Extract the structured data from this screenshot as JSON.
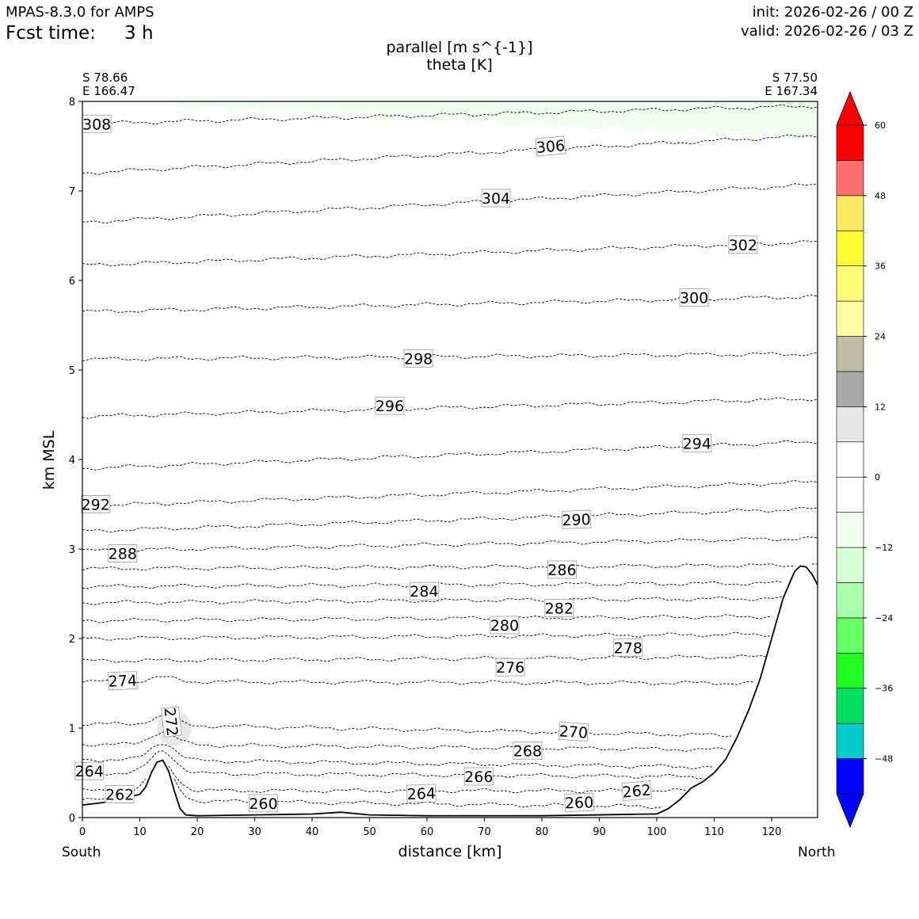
{
  "header": {
    "model": "MPAS-8.3.0 for AMPS",
    "fcst_label": "Fcst time:",
    "fcst_value": "3 h",
    "init": "init: 2026-02-26 / 00 Z",
    "valid": "valid: 2026-02-26 / 03 Z"
  },
  "endpoints": {
    "left_lat": "S 78.66",
    "left_lon": "E 166.47",
    "right_lat": "S 77.50",
    "right_lon": "E 167.34",
    "left_dir": "South",
    "right_dir": "North"
  },
  "chart_data": {
    "type": "cross-section",
    "title": "parallel [m s^{-1}]",
    "subtitle": "theta [K]",
    "xlabel": "distance [km]",
    "ylabel": "km MSL",
    "xlim": [
      0,
      128
    ],
    "ylim": [
      0,
      8
    ],
    "xticks": [
      0,
      10,
      20,
      30,
      40,
      50,
      60,
      70,
      80,
      90,
      100,
      110,
      120
    ],
    "yticks": [
      0,
      1,
      2,
      3,
      4,
      5,
      6,
      7,
      8
    ],
    "colorbar": {
      "levels": [
        -54,
        -48,
        -42,
        -36,
        -30,
        -24,
        -18,
        -12,
        -6,
        0,
        6,
        12,
        18,
        24,
        30,
        36,
        42,
        48,
        54,
        60
      ],
      "ticks": [
        -48,
        -36,
        -24,
        -12,
        0,
        12,
        24,
        36,
        48,
        60
      ],
      "colors": [
        "#0000ff",
        "#00cccc",
        "#00e060",
        "#22ff22",
        "#66ff66",
        "#aaffaa",
        "#d8ffd8",
        "#f0fff0",
        "#ffffff",
        "#ffffff",
        "#e8e8e8",
        "#aaaaaa",
        "#bebea4",
        "#ffffaa",
        "#ffff77",
        "#ffff33",
        "#ffe866",
        "#ff7070",
        "#ff0000"
      ],
      "under_color": "#0000ff",
      "over_color": "#ff0000"
    },
    "terrain": {
      "x": [
        0,
        5,
        10,
        11,
        12,
        13,
        14,
        15,
        16,
        17,
        18,
        20,
        30,
        40,
        45,
        50,
        60,
        80,
        99,
        100,
        102,
        104,
        106,
        108,
        110,
        112,
        114,
        116,
        118,
        120,
        122,
        124,
        125,
        126,
        127,
        128
      ],
      "z": [
        0.14,
        0.18,
        0.26,
        0.34,
        0.5,
        0.62,
        0.64,
        0.52,
        0.3,
        0.1,
        0.03,
        0.02,
        0.03,
        0.04,
        0.06,
        0.03,
        0.02,
        0.02,
        0.04,
        0.04,
        0.1,
        0.2,
        0.33,
        0.4,
        0.5,
        0.65,
        0.9,
        1.2,
        1.55,
        2.0,
        2.45,
        2.75,
        2.81,
        2.8,
        2.72,
        2.6
      ]
    },
    "shading": [
      {
        "name": "light green (-12 to -6)",
        "x": [
          16,
          60,
          128
        ],
        "z_bottom": [
          7.95,
          7.8,
          7.6
        ],
        "z_top": 8.0
      },
      {
        "name": "light gray (6 to 12)",
        "x": [
          13,
          19
        ],
        "z_bottom": 0.8,
        "z_top": 1.2
      }
    ],
    "isentropes_K": [
      260,
      262,
      264,
      266,
      268,
      270,
      272,
      274,
      276,
      278,
      280,
      282,
      284,
      286,
      288,
      290,
      292,
      294,
      296,
      298,
      300,
      302,
      304,
      306,
      308
    ],
    "isentrope_heights_km": [
      {
        "theta": 260,
        "z_left": 0.2,
        "z_right": 0.1
      },
      {
        "theta": 262,
        "z_left": 0.3,
        "z_right": 0.3
      },
      {
        "theta": 264,
        "z_left": 0.5,
        "z_right": 0.45
      },
      {
        "theta": 266,
        "z_left": 0.65,
        "z_right": 0.55
      },
      {
        "theta": 268,
        "z_left": 0.82,
        "z_right": 0.75
      },
      {
        "theta": 270,
        "z_left": 1.05,
        "z_right": 0.9
      },
      {
        "theta": 274,
        "z_left": 1.52,
        "z_right": 1.5
      },
      {
        "theta": 276,
        "z_left": 1.75,
        "z_right": 1.8
      },
      {
        "theta": 278,
        "z_left": 2.0,
        "z_right": 2.05
      },
      {
        "theta": 280,
        "z_left": 2.2,
        "z_right": 2.25
      },
      {
        "theta": 282,
        "z_left": 2.4,
        "z_right": 2.45
      },
      {
        "theta": 284,
        "z_left": 2.58,
        "z_right": 2.62
      },
      {
        "theta": 286,
        "z_left": 2.78,
        "z_right": 2.82
      },
      {
        "theta": 288,
        "z_left": 2.98,
        "z_right": 3.12
      },
      {
        "theta": 290,
        "z_left": 3.2,
        "z_right": 3.45
      },
      {
        "theta": 292,
        "z_left": 3.48,
        "z_right": 3.75
      },
      {
        "theta": 294,
        "z_left": 3.9,
        "z_right": 4.2
      },
      {
        "theta": 296,
        "z_left": 4.48,
        "z_right": 4.68
      },
      {
        "theta": 298,
        "z_left": 5.12,
        "z_right": 5.18
      },
      {
        "theta": 300,
        "z_left": 5.65,
        "z_right": 5.82
      },
      {
        "theta": 302,
        "z_left": 6.17,
        "z_right": 6.43
      },
      {
        "theta": 304,
        "z_left": 6.65,
        "z_right": 7.07
      },
      {
        "theta": 306,
        "z_left": 7.2,
        "z_right": 7.62
      },
      {
        "theta": 308,
        "z_left": 7.75,
        "z_right": 7.95
      }
    ],
    "contour_labels": [
      {
        "text": "308",
        "x": 2.5,
        "z": 7.75,
        "rot": 0
      },
      {
        "text": "306",
        "x": 81.5,
        "z": 7.5,
        "rot": -5
      },
      {
        "text": "304",
        "x": 72,
        "z": 6.92,
        "rot": 0
      },
      {
        "text": "302",
        "x": 115,
        "z": 6.4,
        "rot": 0
      },
      {
        "text": "300",
        "x": 106.5,
        "z": 5.81,
        "rot": 0
      },
      {
        "text": "298",
        "x": 58.5,
        "z": 5.13,
        "rot": 0
      },
      {
        "text": "296",
        "x": 53.5,
        "z": 4.6,
        "rot": 0
      },
      {
        "text": "294",
        "x": 107,
        "z": 4.18,
        "rot": 0
      },
      {
        "text": "292",
        "x": 2.3,
        "z": 3.5,
        "rot": 0
      },
      {
        "text": "290",
        "x": 86,
        "z": 3.33,
        "rot": -2
      },
      {
        "text": "288",
        "x": 7,
        "z": 2.95,
        "rot": 0
      },
      {
        "text": "286",
        "x": 83.5,
        "z": 2.77,
        "rot": 0
      },
      {
        "text": "284",
        "x": 59.5,
        "z": 2.53,
        "rot": 0
      },
      {
        "text": "282",
        "x": 83,
        "z": 2.34,
        "rot": 0
      },
      {
        "text": "280",
        "x": 73.5,
        "z": 2.15,
        "rot": 0
      },
      {
        "text": "278",
        "x": 95,
        "z": 1.9,
        "rot": 0
      },
      {
        "text": "276",
        "x": 74.5,
        "z": 1.68,
        "rot": 0
      },
      {
        "text": "274",
        "x": 7,
        "z": 1.53,
        "rot": -2
      },
      {
        "text": "272",
        "x": 15.5,
        "z": 1.07,
        "rot": 84
      },
      {
        "text": "270",
        "x": 85.5,
        "z": 0.96,
        "rot": 4
      },
      {
        "text": "268",
        "x": 77.5,
        "z": 0.75,
        "rot": 0
      },
      {
        "text": "266",
        "x": 69,
        "z": 0.46,
        "rot": 0
      },
      {
        "text": "264",
        "x": 59,
        "z": 0.27,
        "rot": -2
      },
      {
        "text": "264",
        "x": 1.2,
        "z": 0.52,
        "rot": 0
      },
      {
        "text": "262",
        "x": 6.5,
        "z": 0.26,
        "rot": 0
      },
      {
        "text": "262",
        "x": 96.5,
        "z": 0.3,
        "rot": -5
      },
      {
        "text": "260",
        "x": 31.5,
        "z": 0.16,
        "rot": 0
      },
      {
        "text": "260",
        "x": 86.5,
        "z": 0.17,
        "rot": -2
      }
    ]
  }
}
